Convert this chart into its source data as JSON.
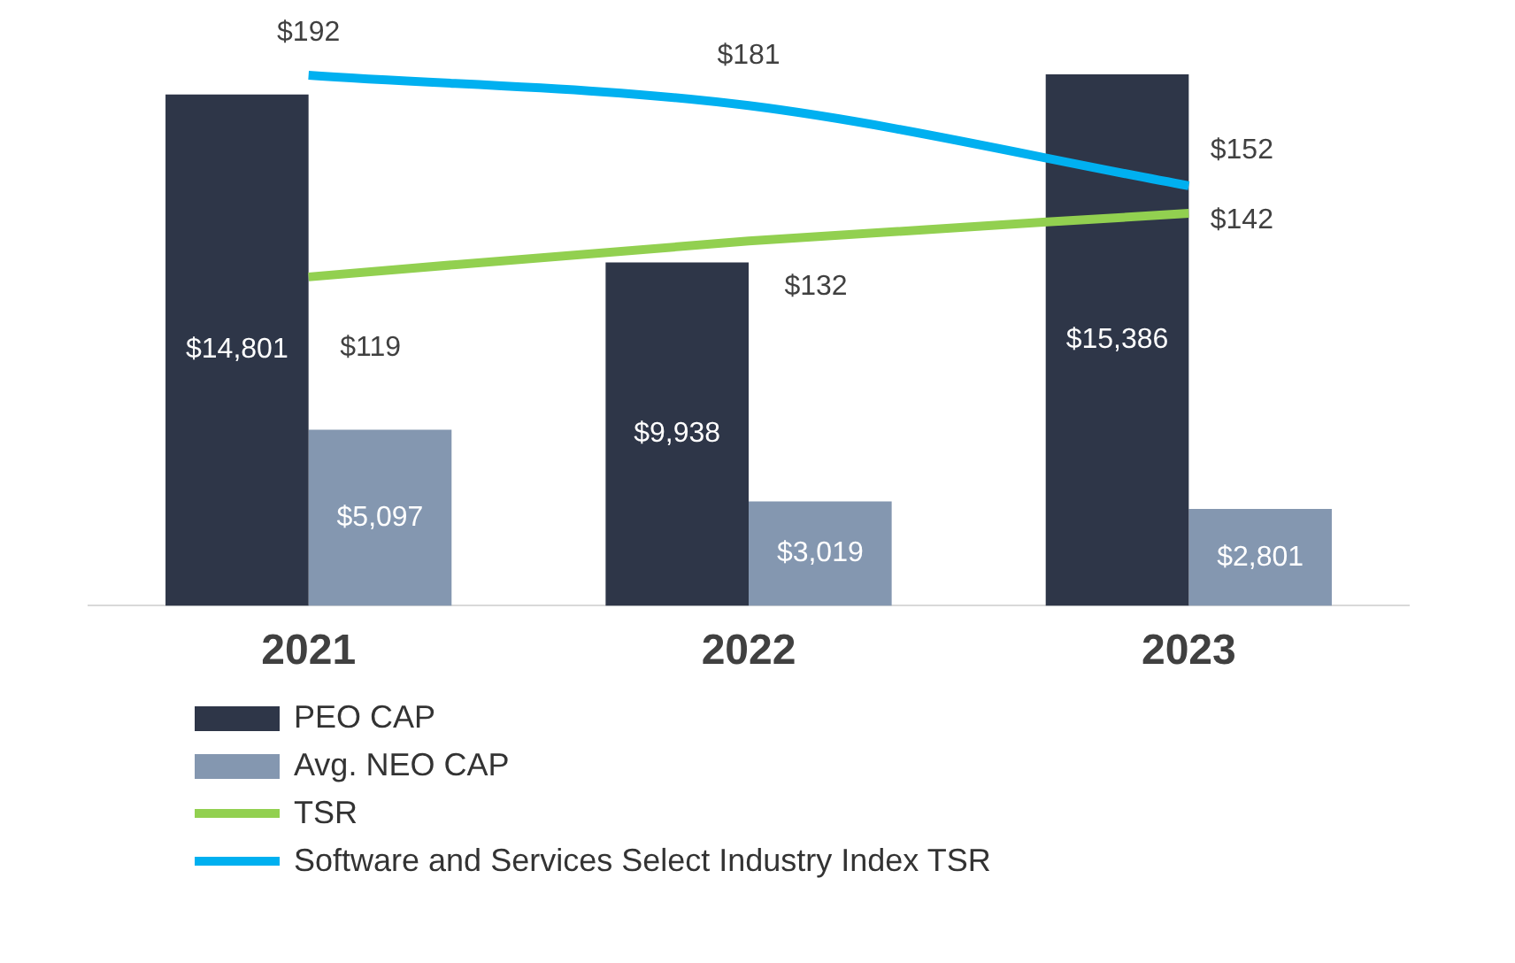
{
  "chart_data": {
    "type": "bar",
    "categories": [
      "2021",
      "2022",
      "2023"
    ],
    "series": [
      {
        "name": "PEO CAP",
        "color": "#2e3648",
        "values": [
          14801,
          9938,
          15386
        ],
        "value_labels": [
          "$14,801",
          "$9,938",
          "$15,386"
        ]
      },
      {
        "name": "Avg. NEO CAP",
        "color": "#8497b0",
        "values": [
          5097,
          3019,
          2801
        ],
        "value_labels": [
          "$5,097",
          "$3,019",
          "$2,801"
        ]
      },
      {
        "name": "TSR",
        "type": "line",
        "axis": "y2",
        "color": "#92d050",
        "values": [
          119,
          132,
          142
        ],
        "value_labels": [
          "$119",
          "$132",
          "$142"
        ]
      },
      {
        "name": "Software and Services Select Industry Index TSR",
        "type": "line",
        "axis": "y2",
        "color": "#00b0f0",
        "values": [
          192,
          181,
          152
        ],
        "value_labels": [
          "$192",
          "$181",
          "$152"
        ]
      }
    ],
    "legend": "bottom",
    "grid": false,
    "marker": "none"
  }
}
